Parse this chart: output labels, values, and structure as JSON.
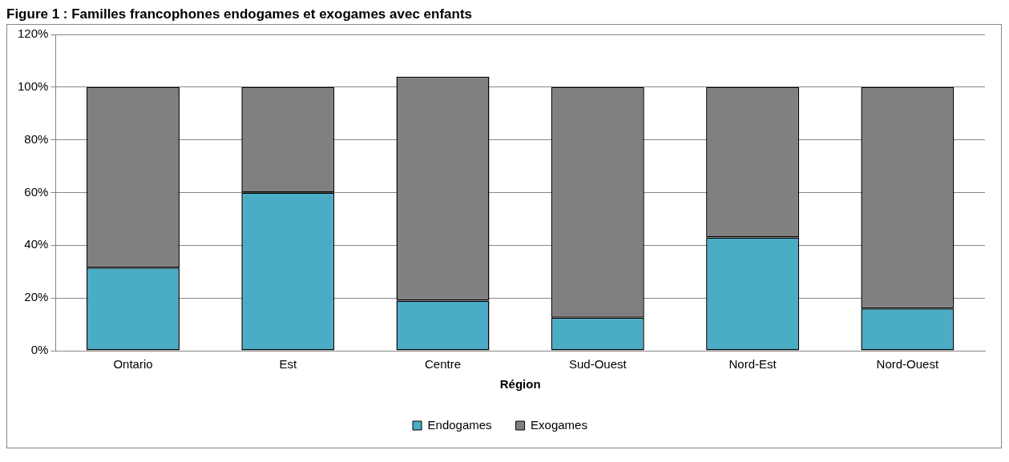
{
  "chart_data": {
    "type": "bar",
    "title": "Figure 1 : Familles francophones endogames et exogames avec enfants",
    "xlabel": "Région",
    "categories": [
      "Ontario",
      "Est",
      "Centre",
      "Sud-Ouest",
      "Nord-Est",
      "Nord-Ouest"
    ],
    "series": [
      {
        "name": "Endogames",
        "color": "#4bacc6",
        "values": [
          31.5,
          60,
          19,
          12.5,
          43,
          16
        ]
      },
      {
        "name": "Exogames",
        "color": "#808080",
        "values": [
          68.5,
          40,
          85,
          87.5,
          57,
          84
        ]
      }
    ],
    "stacked": true,
    "ylim": [
      0,
      120
    ],
    "yticks": [
      {
        "value": 0,
        "label": "0%"
      },
      {
        "value": 20,
        "label": "20%"
      },
      {
        "value": 40,
        "label": "40%"
      },
      {
        "value": 60,
        "label": "60%"
      },
      {
        "value": 80,
        "label": "80%"
      },
      {
        "value": 100,
        "label": "100%"
      },
      {
        "value": 120,
        "label": "120%"
      }
    ],
    "grid": "y",
    "legend": "bottom"
  }
}
